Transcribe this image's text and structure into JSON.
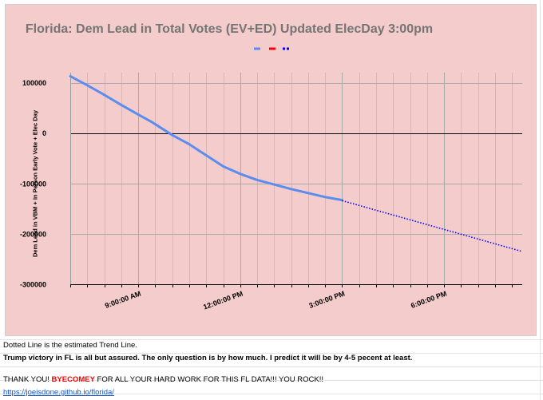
{
  "chart_data": {
    "type": "line",
    "title": "Florida: Dem Lead in Total Votes (EV+ED) Updated ElecDay 3:00pm",
    "xlabel": "",
    "ylabel": "Dem Lead in VBM + In Person Early Vote + Elec Day",
    "xlim": [
      7.0,
      20.3
    ],
    "ylim": [
      -300000,
      120000
    ],
    "x_ticks": [
      9,
      12,
      15,
      18
    ],
    "x_tick_labels": [
      "9:00:00 AM",
      "12:00:00 PM",
      "3:00:00 PM",
      "6:00:00 PM"
    ],
    "y_ticks": [
      100000,
      0,
      -100000,
      -200000,
      -300000
    ],
    "y_tick_labels": [
      "100000",
      "0",
      "-100000",
      "-200000",
      "-300000"
    ],
    "legend_position": "top",
    "series": [
      {
        "name": "",
        "color": "#5b8def",
        "style": "solid",
        "x": [
          7.0,
          7.5,
          8.0,
          8.5,
          9.0,
          9.4,
          10.0,
          10.5,
          11.0,
          11.5,
          12.0,
          12.5,
          13.0,
          13.5,
          14.0,
          14.5,
          15.0
        ],
        "values": [
          113000,
          95000,
          76000,
          56000,
          37000,
          22000,
          -4000,
          -22000,
          -44000,
          -66000,
          -81000,
          -93000,
          -102000,
          -111000,
          -119000,
          -127000,
          -133000
        ]
      },
      {
        "name": "",
        "color": "#ff0000",
        "style": "dashed",
        "x": [],
        "values": []
      },
      {
        "name": "",
        "color": "#0000ff",
        "style": "dotted",
        "x": [
          15.0,
          20.3
        ],
        "values": [
          -134000,
          -235000
        ]
      }
    ]
  },
  "notes": {
    "line1": "Dotted Line is the estimated Trend Line.",
    "line2": "Trump victory in FL is all but assured.  The only question is by how much.  I predict it will be by 4-5 pecent at least.",
    "line3_before": "THANK YOU! ",
    "line3_name": "BYECOMEY",
    "line3_after": " FOR ALL YOUR HARD WORK FOR THIS FL DATA!!!  YOU ROCK!!",
    "link": "https://joeisdone.github.io/florida/"
  }
}
